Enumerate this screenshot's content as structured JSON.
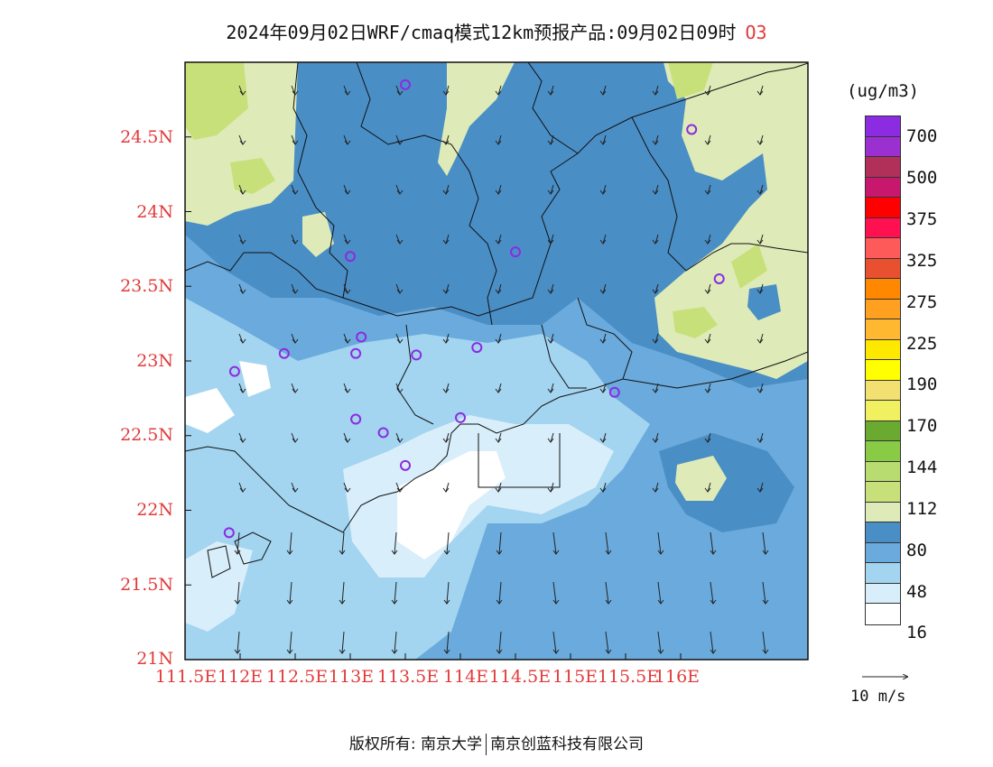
{
  "title": {
    "text": "2024年09月02日WRF/cmaq模式12km预报产品:09月02日09时",
    "pollutant": "O3"
  },
  "axes": {
    "lat_labels": [
      "24.5N",
      "24N",
      "23.5N",
      "23N",
      "22.5N",
      "22N",
      "21.5N",
      "21N"
    ],
    "lon_labels": [
      "111.5E",
      "112E",
      "112.5E",
      "113E",
      "113.5E",
      "114E",
      "114.5E",
      "115E",
      "115.5E",
      "116E"
    ],
    "label_color": "#e23a3a"
  },
  "legend": {
    "unit": "(ug/m3)",
    "tick_labels": [
      "700",
      "500",
      "375",
      "325",
      "275",
      "225",
      "190",
      "170",
      "144",
      "112",
      "80",
      "48",
      "16"
    ],
    "colors_top_to_bottom": [
      "#8b2be2",
      "#9b30d0",
      "#b0305a",
      "#c8186e",
      "#ff0000",
      "#ff1050",
      "#ff5a5a",
      "#e85030",
      "#ff8800",
      "#ffa020",
      "#ffb830",
      "#ffe800",
      "#ffff00",
      "#f2e070",
      "#f0f060",
      "#6aaa30",
      "#8acb45",
      "#b8dc70",
      "#c8e07a",
      "#deebb8",
      "#4a8ec6",
      "#6aaadc",
      "#a3d4f0",
      "#d8eefa",
      "#ffffff"
    ]
  },
  "wind_scale": {
    "label": "10 m/s"
  },
  "field_colors": {
    "c16": "#d8eefa",
    "c48": "#a3d4f0",
    "c64": "#6aaadc",
    "c80": "#4a8ec6",
    "c96": "#deebb8",
    "c112": "#c8e07a"
  },
  "monitoring_stations": [
    {
      "lon": 113.5,
      "lat": 24.85
    },
    {
      "lon": 116.1,
      "lat": 24.55
    },
    {
      "lon": 113.0,
      "lat": 23.7
    },
    {
      "lon": 114.5,
      "lat": 23.73
    },
    {
      "lon": 116.35,
      "lat": 23.55
    },
    {
      "lon": 112.4,
      "lat": 23.05
    },
    {
      "lon": 113.1,
      "lat": 23.16
    },
    {
      "lon": 113.05,
      "lat": 23.05
    },
    {
      "lon": 113.6,
      "lat": 23.04
    },
    {
      "lon": 114.15,
      "lat": 23.09
    },
    {
      "lon": 111.95,
      "lat": 22.93
    },
    {
      "lon": 115.4,
      "lat": 22.79
    },
    {
      "lon": 113.05,
      "lat": 22.61
    },
    {
      "lon": 113.3,
      "lat": 22.52
    },
    {
      "lon": 114.0,
      "lat": 22.62
    },
    {
      "lon": 113.5,
      "lat": 22.3
    },
    {
      "lon": 111.9,
      "lat": 21.85
    }
  ],
  "copyright": {
    "left": "版权所有: 南京大学",
    "right": "南京创蓝科技有限公司"
  }
}
